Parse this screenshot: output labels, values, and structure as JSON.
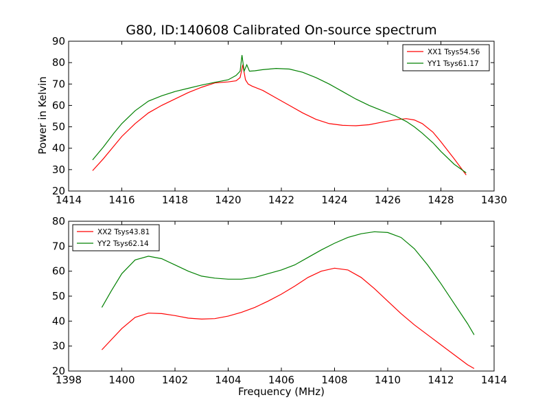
{
  "figure": {
    "title": "G80, ID:140608 Calibrated On-source spectrum",
    "ylabel": "Power in Kelvin",
    "xlabel": "Frequency (MHz)"
  },
  "chart_data": [
    {
      "type": "line",
      "xlim": [
        1414,
        1430
      ],
      "ylim": [
        20,
        90
      ],
      "xticks": [
        1414,
        1416,
        1418,
        1420,
        1422,
        1424,
        1426,
        1428,
        1430
      ],
      "yticks": [
        20,
        30,
        40,
        50,
        60,
        70,
        80,
        90
      ],
      "legend_position": "top-right",
      "series": [
        {
          "name": "XX1 Tsys54.56",
          "color": "#ff0000",
          "x": [
            1414.9,
            1415.3,
            1415.7,
            1416.0,
            1416.5,
            1417.0,
            1417.5,
            1418.0,
            1418.5,
            1419.0,
            1419.5,
            1420.0,
            1420.3,
            1420.45,
            1420.55,
            1420.65,
            1420.75,
            1420.9,
            1421.3,
            1421.8,
            1422.3,
            1422.8,
            1423.3,
            1423.8,
            1424.3,
            1424.8,
            1425.3,
            1425.8,
            1426.3,
            1426.7,
            1427.0,
            1427.3,
            1427.7,
            1428.0,
            1428.5,
            1428.95
          ],
          "y": [
            29.5,
            35,
            41,
            45.5,
            51.5,
            56.5,
            60,
            63,
            66,
            68.5,
            70.5,
            71,
            71.5,
            73,
            79,
            72,
            70,
            69,
            67,
            63.5,
            60,
            56.5,
            53.5,
            51.5,
            50.7,
            50.5,
            51,
            52.2,
            53.3,
            53.8,
            53.2,
            51.5,
            47.5,
            43,
            35,
            27.5
          ]
        },
        {
          "name": "YY1 Tsys61.17",
          "color": "#008000",
          "x": [
            1414.9,
            1415.3,
            1415.7,
            1416.0,
            1416.5,
            1417.0,
            1417.5,
            1418.0,
            1418.5,
            1419.0,
            1419.5,
            1420.0,
            1420.3,
            1420.45,
            1420.52,
            1420.6,
            1420.7,
            1420.8,
            1421.0,
            1421.3,
            1421.8,
            1422.3,
            1422.8,
            1423.3,
            1423.8,
            1424.3,
            1424.8,
            1425.3,
            1425.8,
            1426.3,
            1426.7,
            1427.0,
            1427.3,
            1427.7,
            1428.0,
            1428.5,
            1428.95
          ],
          "y": [
            34.5,
            40.5,
            47,
            51.5,
            57.5,
            62,
            64.5,
            66.5,
            68,
            69.5,
            70.8,
            72,
            74,
            76,
            83.5,
            76,
            79,
            76,
            76.2,
            76.7,
            77.3,
            77,
            75.5,
            73,
            70,
            66.5,
            63,
            60,
            57.5,
            55,
            52.5,
            50,
            47,
            42.5,
            38.5,
            32.5,
            28.5
          ]
        }
      ]
    },
    {
      "type": "line",
      "xlim": [
        1398,
        1414
      ],
      "ylim": [
        20,
        80
      ],
      "xticks": [
        1398,
        1400,
        1402,
        1404,
        1406,
        1408,
        1410,
        1412,
        1414
      ],
      "yticks": [
        20,
        30,
        40,
        50,
        60,
        70,
        80
      ],
      "legend_position": "top-left",
      "series": [
        {
          "name": "XX2 Tsys43.81",
          "color": "#ff0000",
          "x": [
            1399.25,
            1399.6,
            1400.0,
            1400.5,
            1401.0,
            1401.5,
            1402.0,
            1402.5,
            1403.0,
            1403.5,
            1404.0,
            1404.5,
            1405.0,
            1405.5,
            1406.0,
            1406.5,
            1407.0,
            1407.5,
            1408.0,
            1408.5,
            1409.0,
            1409.5,
            1410.0,
            1410.5,
            1411.0,
            1411.5,
            1412.0,
            1412.5,
            1413.0,
            1413.25
          ],
          "y": [
            28.5,
            32.5,
            37,
            41.5,
            43.2,
            43,
            42.2,
            41.2,
            40.8,
            41,
            42,
            43.5,
            45.5,
            48,
            50.8,
            54,
            57.5,
            60,
            61.2,
            60.5,
            57.5,
            53,
            48,
            43,
            38.5,
            34.5,
            30.5,
            26.5,
            22.5,
            21
          ]
        },
        {
          "name": "YY2 Tsys62.14",
          "color": "#008000",
          "x": [
            1399.25,
            1399.6,
            1400.0,
            1400.5,
            1401.0,
            1401.5,
            1402.0,
            1402.5,
            1403.0,
            1403.5,
            1404.0,
            1404.5,
            1405.0,
            1405.5,
            1406.0,
            1406.5,
            1407.0,
            1407.5,
            1408.0,
            1408.5,
            1409.0,
            1409.5,
            1410.0,
            1410.5,
            1411.0,
            1411.5,
            1412.0,
            1412.5,
            1413.0,
            1413.25
          ],
          "y": [
            45.5,
            52,
            59,
            64.5,
            66,
            65,
            62.5,
            60,
            58,
            57.2,
            56.8,
            56.8,
            57.5,
            59,
            60.5,
            62.5,
            65.5,
            68.5,
            71.2,
            73.5,
            75,
            75.8,
            75.5,
            73.5,
            69,
            62.5,
            55,
            47,
            39,
            34.5
          ]
        }
      ]
    }
  ]
}
